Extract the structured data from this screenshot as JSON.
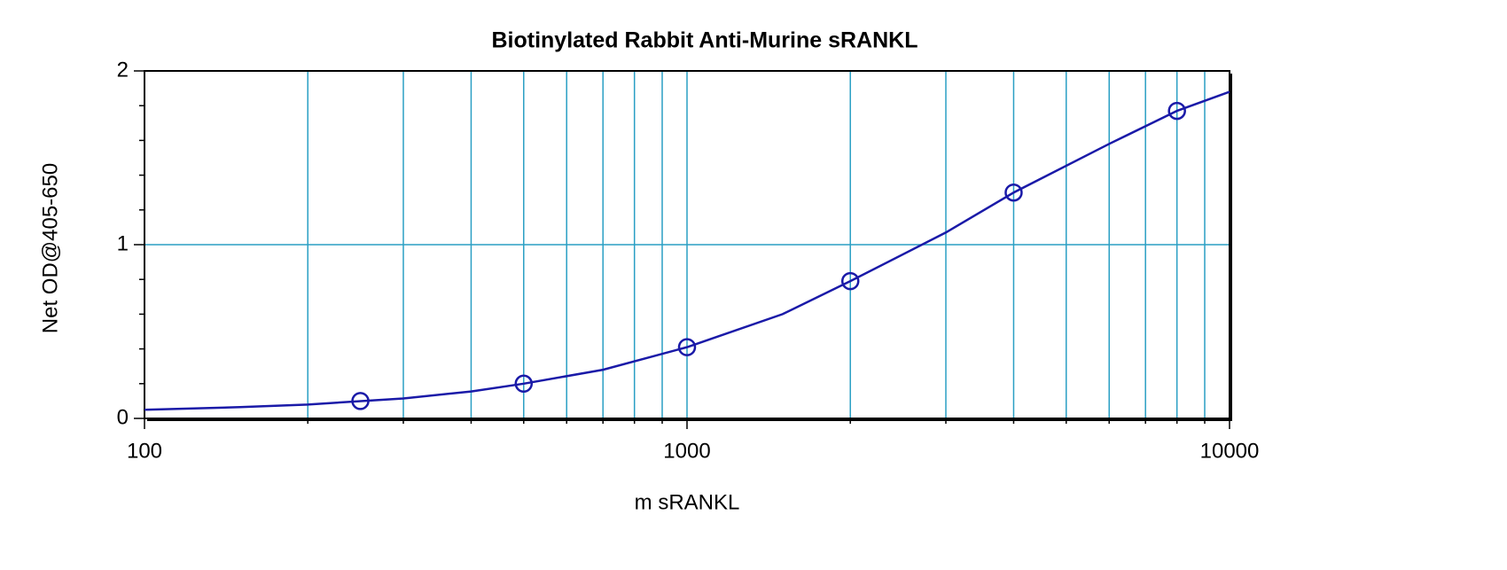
{
  "chart_data": {
    "type": "scatter",
    "title": "Biotinylated Rabbit Anti-Murine sRANKL",
    "x_label": "m sRANKL",
    "y_label": "Net OD@405-650",
    "xscale": "log",
    "xlim": [
      100,
      10000
    ],
    "xticks": [
      100,
      1000,
      10000
    ],
    "xgrid": [
      200,
      300,
      400,
      500,
      600,
      700,
      800,
      900,
      2000,
      3000,
      4000,
      5000,
      6000,
      7000,
      8000,
      9000
    ],
    "ylim": [
      0,
      2
    ],
    "yticks": [
      0,
      1,
      2
    ],
    "yminor_ticks": [
      0.2,
      0.4,
      0.6,
      0.8,
      1.2,
      1.4,
      1.6,
      1.8
    ],
    "grid": true,
    "grid_color": "#2a9fc4",
    "series": [
      {
        "style": "markers",
        "color": "#1a1aa8",
        "x": [
          250,
          500,
          1000,
          2000,
          4000,
          8000
        ],
        "values": [
          0.1,
          0.2,
          0.41,
          0.79,
          1.3,
          1.77
        ]
      },
      {
        "style": "line",
        "color": "#1a1aa8",
        "x": [
          100,
          150,
          200,
          300,
          400,
          500,
          700,
          1000,
          1500,
          2000,
          3000,
          4000,
          6000,
          8000,
          10000
        ],
        "values": [
          0.05,
          0.065,
          0.08,
          0.115,
          0.155,
          0.2,
          0.28,
          0.41,
          0.6,
          0.79,
          1.07,
          1.3,
          1.58,
          1.77,
          1.88
        ]
      }
    ]
  }
}
